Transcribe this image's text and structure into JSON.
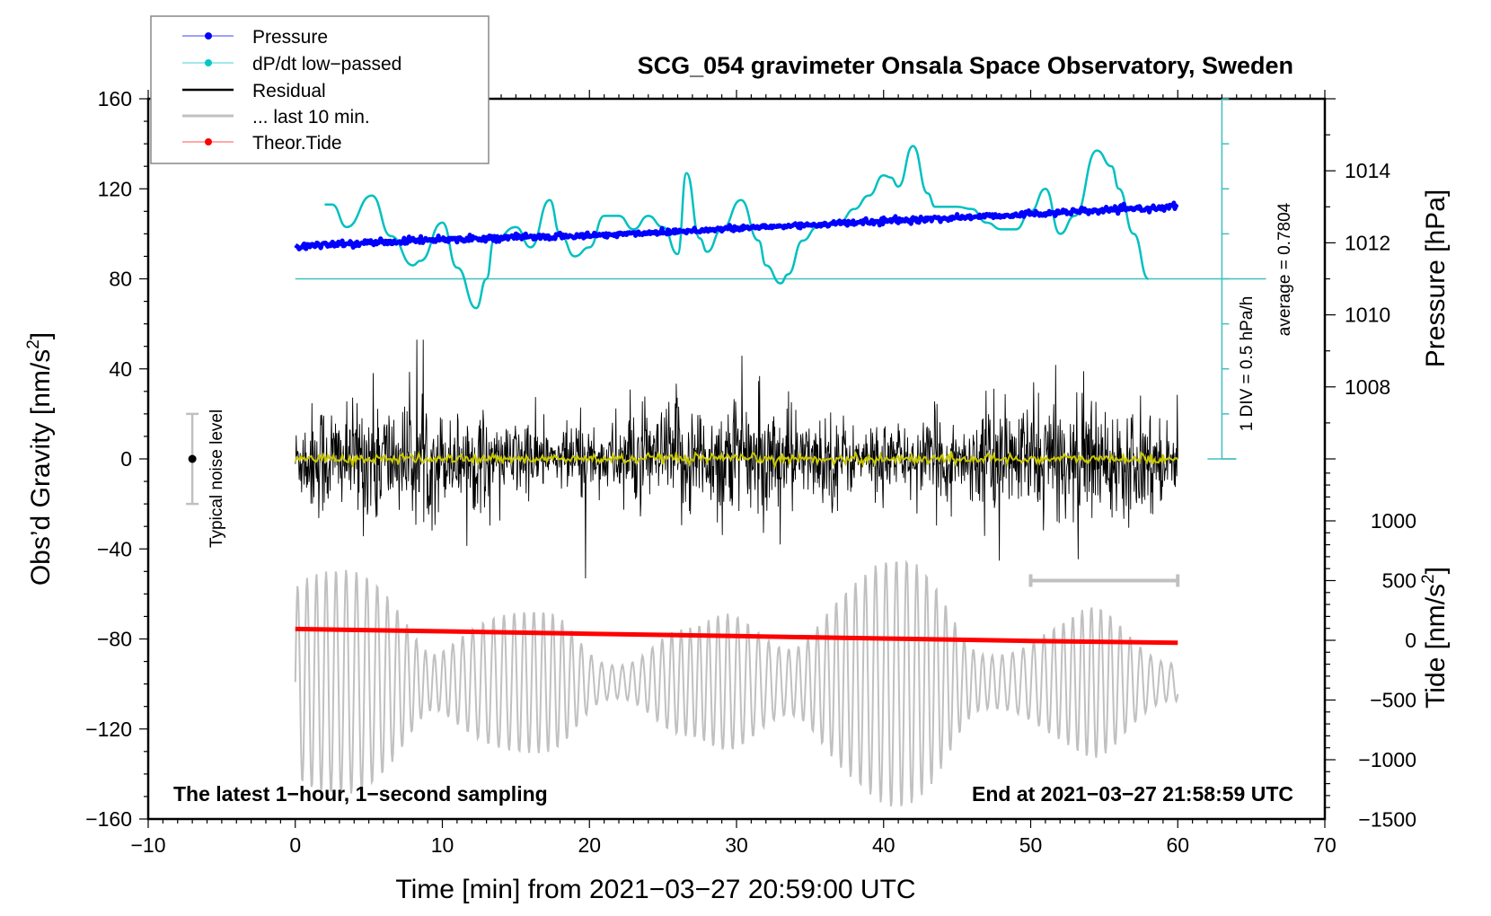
{
  "chart_data": {
    "type": "line",
    "title": "SCG_054 gravimeter Onsala Space Observatory, Sweden",
    "xlabel": "Time [min] from 2021−03−27 20:59:00 UTC",
    "ylabel_left": "Obs’d Gravity [nm/s²]",
    "ylabel_left_base": "Obs’d Gravity [nm/s",
    "ylabel_left_sup": "2",
    "ylabel_left_end": "]",
    "ylabel_right_pressure": "Pressure [hPa]",
    "ylabel_right_tide_base": "Tide [nm/s",
    "ylabel_right_tide_sup": "2",
    "ylabel_right_tide_end": "]",
    "xlim": [
      -10,
      70
    ],
    "ylim_left": [
      -160,
      160
    ],
    "x_ticks": [
      -10,
      0,
      10,
      20,
      30,
      40,
      50,
      60,
      70
    ],
    "x_tick_labels": [
      "−10",
      "0",
      "10",
      "20",
      "30",
      "40",
      "50",
      "60",
      "70"
    ],
    "y_left_ticks": [
      160,
      120,
      80,
      40,
      0,
      -40,
      -80,
      -120,
      -160
    ],
    "y_left_tick_labels": [
      "160",
      "120",
      "80",
      "40",
      "0",
      "−40",
      "−80",
      "−120",
      "−160"
    ],
    "pressure_axis": {
      "ticks": [
        1014,
        1012,
        1010,
        1008
      ],
      "tick_labels": [
        "1014",
        "1012",
        "1010",
        "1008"
      ],
      "range_hPa": [
        1006,
        1016
      ],
      "gravity_equivalent_range": [
        0,
        160
      ]
    },
    "tide_axis": {
      "ticks": [
        1000,
        500,
        0,
        -500,
        -1000,
        -1500
      ],
      "tick_labels": [
        "1000",
        "500",
        "0",
        "−500",
        "−1000",
        "−1500"
      ],
      "range": [
        -1500,
        1500
      ]
    },
    "dpdt_scale": {
      "zero_line_gravity": 80,
      "division_label": "1 DIV = 0.5 hPa/h",
      "average_label": "average = 0.7804",
      "divisions": 8
    },
    "grid": false,
    "legend_position": "top-left",
    "legend": [
      {
        "name": "Pressure",
        "color": "#0000ff",
        "style": "line-marker"
      },
      {
        "name": "dP/dt low−passed",
        "color": "#00c8c8",
        "style": "line-marker"
      },
      {
        "name": "Residual",
        "color": "#000000",
        "style": "line"
      },
      {
        "name": "... last 10 min.",
        "color": "#c0c0c0",
        "style": "line"
      },
      {
        "name": "Theor.Tide",
        "color": "#ff0000",
        "style": "line-marker"
      }
    ],
    "series": [
      {
        "name": "Pressure",
        "color": "#0000ff",
        "axis": "pressure",
        "x": [
          0,
          10,
          20,
          30,
          40,
          50,
          60
        ],
        "values_hPa": [
          1011.9,
          1012.1,
          1012.2,
          1012.4,
          1012.6,
          1012.8,
          1013.0
        ]
      },
      {
        "name": "dP/dt low-passed",
        "color": "#00c0c0",
        "axis": "gravity_equivalent",
        "x": [
          2,
          2.5,
          3.5,
          5.2,
          6.5,
          8,
          8.5,
          10,
          11,
          12.3,
          13,
          13.5,
          15,
          16,
          17.3,
          18,
          19,
          20,
          21,
          22,
          23,
          24,
          25,
          26,
          26.6,
          27.5,
          28,
          29,
          30.3,
          31.5,
          32,
          33,
          33.5,
          34.5,
          35.5,
          36,
          37,
          38,
          39,
          40,
          40.5,
          41,
          42,
          43,
          43.5,
          45,
          46,
          47,
          48,
          49,
          50,
          51,
          52,
          53,
          54.5,
          55.5,
          56,
          57,
          58
        ],
        "values": [
          113,
          113,
          103,
          117,
          99,
          86,
          88,
          105,
          85,
          67,
          80,
          97,
          103,
          94,
          115,
          100,
          90,
          94,
          108,
          108,
          102,
          108,
          103,
          91,
          127,
          98,
          92,
          102,
          115,
          97,
          86,
          78,
          82,
          97,
          103,
          104,
          105,
          111,
          117,
          126,
          125,
          121,
          139,
          118,
          112,
          112,
          111,
          105,
          102,
          102,
          110,
          120,
          100,
          108,
          137,
          130,
          120,
          100,
          80
        ]
      },
      {
        "name": "Residual",
        "color": "#000000",
        "axis": "gravity",
        "x_range": [
          0,
          60
        ],
        "amplitude_approx": 25,
        "max_approx": 53,
        "min_approx": -60,
        "sampling": "1 s"
      },
      {
        "name": "Residual (smoothed)",
        "color": "#c8c800",
        "axis": "gravity",
        "x_range": [
          0,
          60
        ],
        "values_approx": 0
      },
      {
        "name": "... last 10 min.",
        "color": "#c0c0c0",
        "axis": "tide",
        "x_range": [
          0,
          60
        ],
        "amplitude_approx": 700,
        "max_approx": 650,
        "min_approx": -1480,
        "center_approx": -350
      },
      {
        "name": "Theor.Tide",
        "color": "#ff0000",
        "axis": "tide",
        "x": [
          0,
          10,
          20,
          30,
          40,
          50,
          60
        ],
        "values": [
          95,
          75,
          55,
          35,
          15,
          -5,
          -20
        ]
      }
    ],
    "noise_bar": {
      "label": "Typical noise level",
      "x": -7,
      "center": 0,
      "range": [
        -20,
        20
      ]
    },
    "last10_marker": {
      "x_range": [
        50,
        60
      ],
      "tide_value": 500
    },
    "annotations": {
      "bottom_left": "The latest 1−hour, 1−second sampling",
      "bottom_right": "End at 2021−03−27 21:58:59 UTC"
    }
  }
}
